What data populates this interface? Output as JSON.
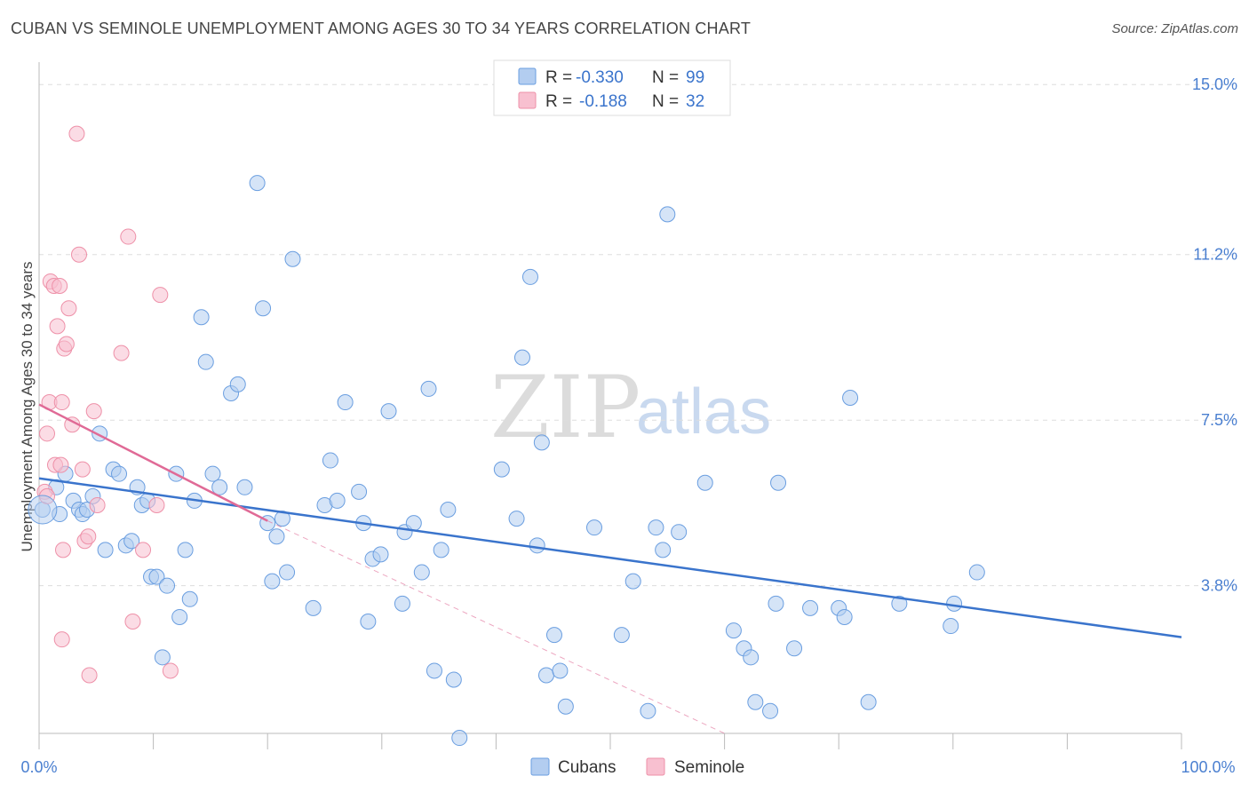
{
  "header": {
    "title": "CUBAN VS SEMINOLE UNEMPLOYMENT AMONG AGES 30 TO 34 YEARS CORRELATION CHART",
    "source": "Source: ZipAtlas.com"
  },
  "watermark": {
    "zip": "ZIP",
    "atlas": "atlas"
  },
  "legend": {
    "rows": [
      {
        "swatch_color": "#b3cdf0",
        "r_label": "R =",
        "r_value": "-0.330",
        "n_label": "N =",
        "n_value": "99"
      },
      {
        "swatch_color": "#f8c0d0",
        "r_label": "R =",
        "r_value": "-0.188",
        "n_label": "N =",
        "n_value": "32"
      }
    ]
  },
  "bottom_legend": {
    "items": [
      "Cubans",
      "Seminole"
    ]
  },
  "chart_data": {
    "type": "scatter",
    "title": "CUBAN VS SEMINOLE UNEMPLOYMENT AMONG AGES 30 TO 34 YEARS CORRELATION CHART",
    "xlabel": "",
    "ylabel": "Unemployment Among Ages 30 to 34 years",
    "xlim": [
      0,
      100
    ],
    "ylim": [
      0.5,
      15.5
    ],
    "x_tick_labels": [
      "0.0%",
      "100.0%"
    ],
    "y_ticks": [
      3.8,
      7.5,
      11.2,
      15.0
    ],
    "y_tick_labels": [
      "3.8%",
      "7.5%",
      "11.2%",
      "15.0%"
    ],
    "grid": true,
    "series": [
      {
        "name": "Cubans",
        "color": "#6a9ee0",
        "fill": "#b3cdf0",
        "trend": {
          "x0": 0,
          "y0": 6.2,
          "x1": 100,
          "y1": 2.65,
          "color": "#3a74cc"
        },
        "points": [
          [
            0.3,
            5.5
          ],
          [
            1.5,
            6.0
          ],
          [
            1.8,
            5.4
          ],
          [
            2.3,
            6.3
          ],
          [
            3,
            5.7
          ],
          [
            3.5,
            5.5
          ],
          [
            3.8,
            5.4
          ],
          [
            4.2,
            5.5
          ],
          [
            4.7,
            5.8
          ],
          [
            5.3,
            7.2
          ],
          [
            5.8,
            4.6
          ],
          [
            6.5,
            6.4
          ],
          [
            7,
            6.3
          ],
          [
            7.6,
            4.7
          ],
          [
            8.1,
            4.8
          ],
          [
            8.6,
            6.0
          ],
          [
            9,
            5.6
          ],
          [
            9.5,
            5.7
          ],
          [
            9.8,
            4.0
          ],
          [
            10.3,
            4.0
          ],
          [
            10.8,
            2.2
          ],
          [
            11.2,
            3.8
          ],
          [
            12.0,
            6.3
          ],
          [
            12.3,
            3.1
          ],
          [
            12.8,
            4.6
          ],
          [
            13.2,
            3.5
          ],
          [
            13.6,
            5.7
          ],
          [
            14.2,
            9.8
          ],
          [
            14.6,
            8.8
          ],
          [
            15.2,
            6.3
          ],
          [
            15.8,
            6.0
          ],
          [
            16.8,
            8.1
          ],
          [
            17.4,
            8.3
          ],
          [
            18.0,
            6.0
          ],
          [
            19.1,
            12.8
          ],
          [
            19.6,
            10.0
          ],
          [
            20.0,
            5.2
          ],
          [
            20.4,
            3.9
          ],
          [
            20.8,
            4.9
          ],
          [
            21.3,
            5.3
          ],
          [
            21.7,
            4.1
          ],
          [
            22.2,
            11.1
          ],
          [
            24.0,
            3.3
          ],
          [
            25.0,
            5.6
          ],
          [
            25.5,
            6.6
          ],
          [
            26.1,
            5.7
          ],
          [
            26.8,
            7.9
          ],
          [
            28.0,
            5.9
          ],
          [
            28.4,
            5.2
          ],
          [
            28.8,
            3.0
          ],
          [
            29.2,
            4.4
          ],
          [
            29.9,
            4.5
          ],
          [
            30.6,
            7.7
          ],
          [
            32.0,
            5.0
          ],
          [
            31.8,
            3.4
          ],
          [
            32.8,
            5.2
          ],
          [
            33.5,
            4.1
          ],
          [
            34.1,
            8.2
          ],
          [
            34.6,
            1.9
          ],
          [
            35.2,
            4.6
          ],
          [
            35.8,
            5.5
          ],
          [
            36.3,
            1.7
          ],
          [
            36.8,
            0.4
          ],
          [
            40.5,
            6.4
          ],
          [
            41.8,
            5.3
          ],
          [
            42.3,
            8.9
          ],
          [
            43.0,
            10.7
          ],
          [
            43.6,
            4.7
          ],
          [
            44.0,
            7.0
          ],
          [
            44.4,
            1.8
          ],
          [
            45.1,
            2.7
          ],
          [
            45.6,
            1.9
          ],
          [
            46.1,
            1.1
          ],
          [
            48.6,
            5.1
          ],
          [
            51.0,
            2.7
          ],
          [
            52.0,
            3.9
          ],
          [
            53.3,
            1.0
          ],
          [
            54.0,
            5.1
          ],
          [
            54.6,
            4.6
          ],
          [
            55.0,
            12.1
          ],
          [
            56.0,
            5.0
          ],
          [
            58.3,
            6.1
          ],
          [
            60.8,
            2.8
          ],
          [
            61.7,
            2.4
          ],
          [
            62.3,
            2.2
          ],
          [
            62.7,
            1.2
          ],
          [
            64.0,
            1.0
          ],
          [
            64.5,
            3.4
          ],
          [
            64.7,
            6.1
          ],
          [
            66.1,
            2.4
          ],
          [
            67.5,
            3.3
          ],
          [
            70.0,
            3.3
          ],
          [
            71.0,
            8.0
          ],
          [
            72.6,
            1.2
          ],
          [
            75.3,
            3.4
          ],
          [
            79.8,
            2.9
          ],
          [
            80.1,
            3.4
          ],
          [
            82.1,
            4.1
          ],
          [
            70.5,
            3.1
          ]
        ]
      },
      {
        "name": "Seminole",
        "color": "#ee90a8",
        "fill": "#f8c0d0",
        "trend": {
          "x0": 0,
          "y0": 7.85,
          "x1": 20,
          "y1": 5.25,
          "color": "#e06a96"
        },
        "trend_extension": {
          "x0": 20,
          "y0": 5.25,
          "x1": 60,
          "y1": 0.5
        },
        "points": [
          [
            0.5,
            5.9
          ],
          [
            0.7,
            7.2
          ],
          [
            0.9,
            7.9
          ],
          [
            1.0,
            10.6
          ],
          [
            1.3,
            10.5
          ],
          [
            1.6,
            9.6
          ],
          [
            1.8,
            10.5
          ],
          [
            2.0,
            7.9
          ],
          [
            2.2,
            9.1
          ],
          [
            2.4,
            9.2
          ],
          [
            2.6,
            10.0
          ],
          [
            2.9,
            7.4
          ],
          [
            3.3,
            13.9
          ],
          [
            3.5,
            11.2
          ],
          [
            3.8,
            6.4
          ],
          [
            4.0,
            4.8
          ],
          [
            4.3,
            4.9
          ],
          [
            1.4,
            6.5
          ],
          [
            1.9,
            6.5
          ],
          [
            2.1,
            4.6
          ],
          [
            2.0,
            2.6
          ],
          [
            4.8,
            7.7
          ],
          [
            5.1,
            5.6
          ],
          [
            7.2,
            9.0
          ],
          [
            7.8,
            11.6
          ],
          [
            8.2,
            3.0
          ],
          [
            9.1,
            4.6
          ],
          [
            10.3,
            5.6
          ],
          [
            10.6,
            10.3
          ],
          [
            11.5,
            1.9
          ],
          [
            0.7,
            5.8
          ],
          [
            4.4,
            1.8
          ]
        ]
      }
    ]
  }
}
